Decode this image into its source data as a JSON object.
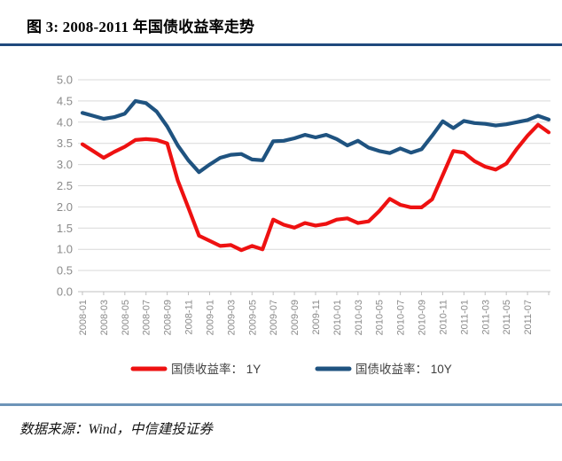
{
  "title": "图 3: 2008-2011 年国债收益率走势",
  "footer": {
    "source_text": "数据来源：Wind，中信建投证券"
  },
  "colors": {
    "title_rule": "#1F497D",
    "footer_rule": "#6D94B8",
    "grid": "#D9D9D9",
    "axis": "#BFBFBF",
    "tick_label": "#8A8A8A",
    "legend_text": "#3F3F3F",
    "series_1y": "#EE1111",
    "series_10y": "#1F5380"
  },
  "chart_data": {
    "type": "line",
    "title": "图 3: 2008-2011 年国债收益率走势",
    "xlabel": "",
    "ylabel": "",
    "ylim": [
      0.0,
      5.0
    ],
    "ytick_step": 0.5,
    "xtick_every": 2,
    "grid": "horizontal",
    "legend_position": "bottom",
    "categories": [
      "2008-01",
      "2008-02",
      "2008-03",
      "2008-04",
      "2008-05",
      "2008-06",
      "2008-07",
      "2008-08",
      "2008-09",
      "2008-10",
      "2008-11",
      "2008-12",
      "2009-01",
      "2009-02",
      "2009-03",
      "2009-04",
      "2009-05",
      "2009-06",
      "2009-07",
      "2009-08",
      "2009-09",
      "2009-10",
      "2009-11",
      "2009-12",
      "2010-01",
      "2010-02",
      "2010-03",
      "2010-04",
      "2010-05",
      "2010-06",
      "2010-07",
      "2010-08",
      "2010-09",
      "2010-10",
      "2010-11",
      "2010-12",
      "2011-01",
      "2011-02",
      "2011-03",
      "2011-04",
      "2011-05",
      "2011-06",
      "2011-07",
      "2011-08",
      "2011-09"
    ],
    "series": [
      {
        "name": "国债收益率： 1Y",
        "key": "1y",
        "color": "#EE1111",
        "values": [
          3.48,
          3.32,
          3.16,
          3.3,
          3.42,
          3.58,
          3.6,
          3.58,
          3.5,
          2.62,
          1.98,
          1.32,
          1.2,
          1.08,
          1.1,
          0.98,
          1.08,
          1.0,
          1.7,
          1.58,
          1.51,
          1.62,
          1.56,
          1.6,
          1.7,
          1.73,
          1.62,
          1.66,
          1.9,
          2.19,
          2.05,
          1.99,
          1.99,
          2.18,
          2.75,
          3.32,
          3.28,
          3.08,
          2.95,
          2.88,
          3.02,
          3.37,
          3.68,
          3.94,
          3.76
        ]
      },
      {
        "name": "国债收益率： 10Y",
        "key": "10y",
        "color": "#1F5380",
        "values": [
          4.22,
          4.15,
          4.08,
          4.12,
          4.2,
          4.5,
          4.45,
          4.25,
          3.9,
          3.45,
          3.1,
          2.82,
          3.0,
          3.16,
          3.23,
          3.25,
          3.12,
          3.1,
          3.55,
          3.56,
          3.62,
          3.7,
          3.64,
          3.7,
          3.6,
          3.45,
          3.56,
          3.4,
          3.32,
          3.27,
          3.38,
          3.28,
          3.36,
          3.68,
          4.02,
          3.86,
          4.03,
          3.98,
          3.96,
          3.92,
          3.95,
          4.0,
          4.05,
          4.15,
          4.06
        ]
      }
    ]
  }
}
